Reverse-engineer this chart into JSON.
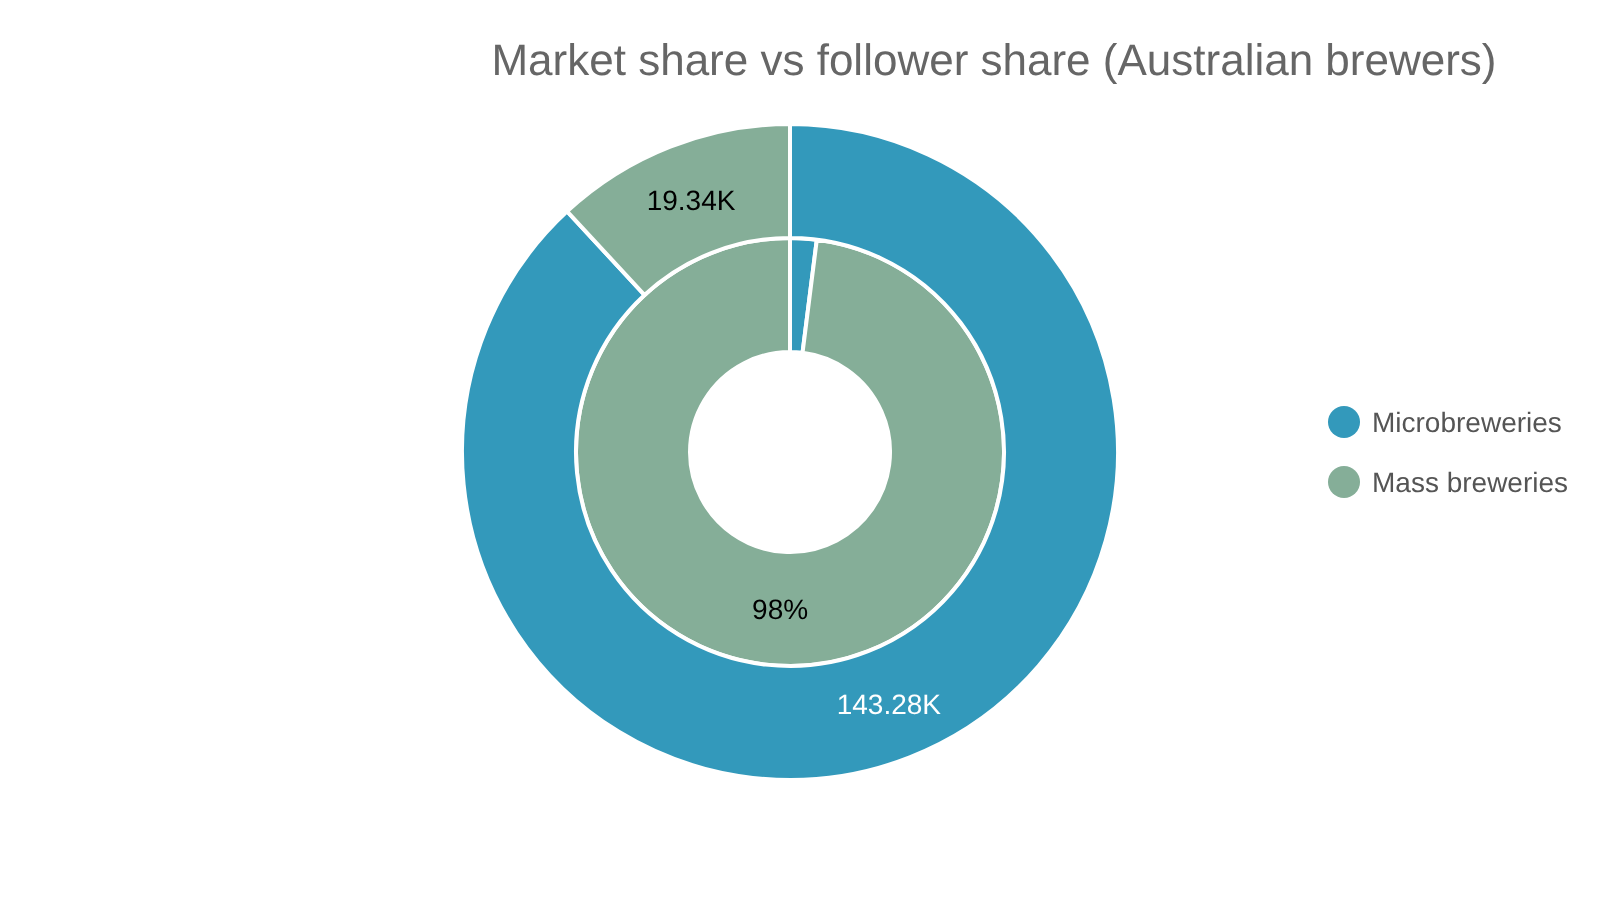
{
  "chart_data": {
    "type": "donut",
    "title": "Market share vs follower share (Australian brewers)",
    "categories": [
      "Microbreweries",
      "Mass breweries"
    ],
    "colors": [
      "#3399bb",
      "#85ae98"
    ],
    "series": [
      {
        "values": [
          2,
          98
        ],
        "value_labels": [
          null,
          "98%"
        ]
      },
      {
        "values": [
          143.28,
          19.34
        ],
        "value_labels": [
          "143.28K",
          "19.34K"
        ]
      }
    ],
    "legend": "right"
  }
}
